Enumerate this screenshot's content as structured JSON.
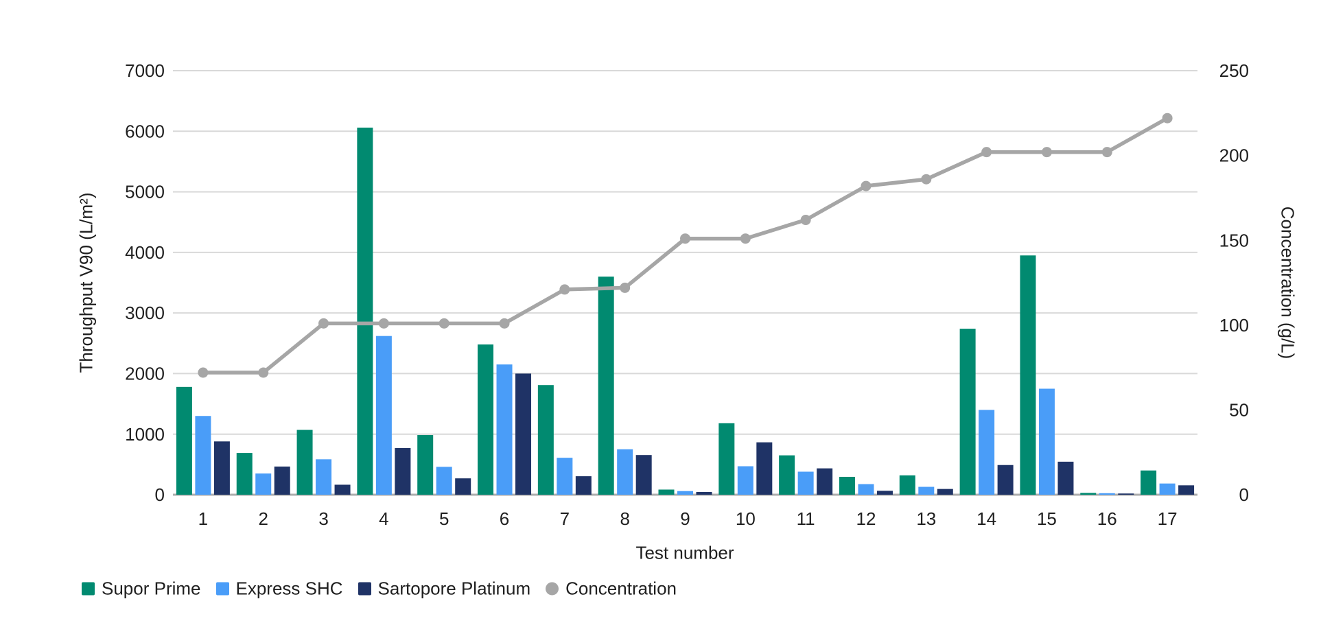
{
  "figure": {
    "background": "#ffffff",
    "text_color": "#1f1f1f",
    "gridline_color": "#d9d9d9",
    "baseline_color": "#acacac"
  },
  "chart_data": {
    "type": "bar+line",
    "title": "",
    "categories": [
      "1",
      "2",
      "3",
      "4",
      "5",
      "6",
      "7",
      "8",
      "9",
      "10",
      "11",
      "12",
      "13",
      "14",
      "15",
      "16",
      "17"
    ],
    "series": [
      {
        "name": "Supor Prime",
        "type": "bar",
        "axis": "left",
        "color": "#018a70",
        "values": [
          1780,
          690,
          1070,
          6060,
          985,
          2480,
          1810,
          3600,
          85,
          1180,
          650,
          295,
          320,
          2740,
          3950,
          30,
          400
        ]
      },
      {
        "name": "Express SHC",
        "type": "bar",
        "axis": "left",
        "color": "#4a9df8",
        "values": [
          1300,
          350,
          585,
          2620,
          460,
          2150,
          610,
          750,
          60,
          470,
          380,
          175,
          130,
          1400,
          1750,
          25,
          185
        ]
      },
      {
        "name": "Sartopore Platinum",
        "type": "bar",
        "axis": "left",
        "color": "#1f3366",
        "values": [
          880,
          465,
          165,
          770,
          270,
          2000,
          305,
          655,
          45,
          865,
          435,
          65,
          95,
          490,
          545,
          20,
          155
        ]
      },
      {
        "name": "Concentration",
        "type": "line",
        "axis": "right",
        "color": "#a6a6a6",
        "values": [
          72,
          72,
          101,
          101,
          101,
          101,
          121,
          122,
          151,
          151,
          162,
          182,
          186,
          202,
          202,
          202,
          222
        ]
      }
    ],
    "left_axis": {
      "label": "Throughput V90 (L/m²)",
      "min": 0,
      "max": 7000,
      "tick_step": 1000,
      "ticks": [
        "0",
        "1000",
        "2000",
        "3000",
        "4000",
        "5000",
        "6000",
        "7000"
      ]
    },
    "right_axis": {
      "label": "Concentration (g/L)",
      "min": 0,
      "max": 250,
      "tick_step": 50,
      "ticks": [
        "0",
        "50",
        "100",
        "150",
        "200",
        "250"
      ]
    },
    "x_axis": {
      "label": "Test number"
    },
    "legend_position": "bottom-left",
    "grid": true
  }
}
